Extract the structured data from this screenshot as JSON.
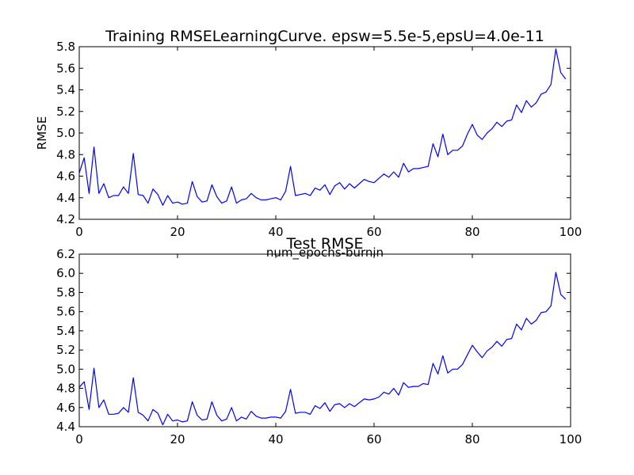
{
  "chart_data": [
    {
      "type": "line",
      "title": "Training RMSELearningCurve. epsw=5.5e-5,epsU=4.0e-11",
      "xlabel": "num_epochs-burnin",
      "ylabel": "RMSE",
      "xlim": [
        0,
        100
      ],
      "ylim": [
        4.2,
        5.8
      ],
      "xticks": [
        "0",
        "20",
        "40",
        "60",
        "80",
        "100"
      ],
      "yticks": [
        "4.2",
        "4.4",
        "4.6",
        "4.8",
        "5.0",
        "5.2",
        "5.4",
        "5.6",
        "5.8"
      ],
      "grid": false,
      "color": "#0000ff",
      "series": [
        {
          "x": [
            0,
            1,
            2,
            3,
            4,
            5,
            6,
            7,
            8,
            9,
            10,
            11,
            12,
            13,
            14,
            15,
            16,
            17,
            18,
            19,
            20,
            21,
            22,
            23,
            24,
            25,
            26,
            27,
            28,
            29,
            30,
            31,
            32,
            33,
            34,
            35,
            36,
            37,
            38,
            39,
            40,
            41,
            42,
            43,
            44,
            45,
            46,
            47,
            48,
            49,
            50,
            51,
            52,
            53,
            54,
            55,
            56,
            57,
            58,
            59,
            60,
            61,
            62,
            63,
            64,
            65,
            66,
            67,
            68,
            69,
            70,
            71,
            72,
            73,
            74,
            75,
            76,
            77,
            78,
            79,
            80,
            81,
            82,
            83,
            84,
            85,
            86,
            87,
            88,
            89,
            90,
            91,
            92,
            93,
            94,
            95,
            96,
            97,
            98,
            99
          ],
          "values": [
            4.63,
            4.77,
            4.44,
            4.87,
            4.44,
            4.53,
            4.4,
            4.42,
            4.42,
            4.5,
            4.44,
            4.81,
            4.43,
            4.42,
            4.35,
            4.48,
            4.43,
            4.33,
            4.42,
            4.35,
            4.36,
            4.34,
            4.35,
            4.55,
            4.41,
            4.36,
            4.37,
            4.52,
            4.41,
            4.35,
            4.37,
            4.5,
            4.35,
            4.38,
            4.39,
            4.44,
            4.4,
            4.38,
            4.38,
            4.39,
            4.4,
            4.38,
            4.46,
            4.69,
            4.42,
            4.43,
            4.44,
            4.42,
            4.49,
            4.47,
            4.52,
            4.43,
            4.51,
            4.54,
            4.48,
            4.53,
            4.49,
            4.53,
            4.57,
            4.55,
            4.54,
            4.58,
            4.62,
            4.59,
            4.64,
            4.59,
            4.72,
            4.64,
            4.67,
            4.67,
            4.68,
            4.69,
            4.9,
            4.78,
            4.99,
            4.8,
            4.84,
            4.84,
            4.88,
            4.99,
            5.08,
            4.98,
            4.94,
            5.0,
            5.04,
            5.1,
            5.06,
            5.11,
            5.12,
            5.26,
            5.19,
            5.3,
            5.24,
            5.28,
            5.36,
            5.38,
            5.45,
            5.78,
            5.56,
            5.5
          ]
        }
      ]
    },
    {
      "type": "line",
      "title": "Test RMSE",
      "xlabel": "",
      "ylabel": "",
      "xlim": [
        0,
        100
      ],
      "ylim": [
        4.4,
        6.2
      ],
      "xticks": [
        "0",
        "20",
        "40",
        "60",
        "80",
        "100"
      ],
      "yticks": [
        "4.4",
        "4.6",
        "4.8",
        "5.0",
        "5.2",
        "5.4",
        "5.6",
        "5.8",
        "6.0",
        "6.2"
      ],
      "grid": false,
      "color": "#0000ff",
      "series": [
        {
          "x": [
            0,
            1,
            2,
            3,
            4,
            5,
            6,
            7,
            8,
            9,
            10,
            11,
            12,
            13,
            14,
            15,
            16,
            17,
            18,
            19,
            20,
            21,
            22,
            23,
            24,
            25,
            26,
            27,
            28,
            29,
            30,
            31,
            32,
            33,
            34,
            35,
            36,
            37,
            38,
            39,
            40,
            41,
            42,
            43,
            44,
            45,
            46,
            47,
            48,
            49,
            50,
            51,
            52,
            53,
            54,
            55,
            56,
            57,
            58,
            59,
            60,
            61,
            62,
            63,
            64,
            65,
            66,
            67,
            68,
            69,
            70,
            71,
            72,
            73,
            74,
            75,
            76,
            77,
            78,
            79,
            80,
            81,
            82,
            83,
            84,
            85,
            86,
            87,
            88,
            89,
            90,
            91,
            92,
            93,
            94,
            95,
            96,
            97,
            98,
            99
          ],
          "values": [
            4.81,
            4.87,
            4.58,
            5.01,
            4.6,
            4.68,
            4.53,
            4.53,
            4.54,
            4.6,
            4.55,
            4.91,
            4.55,
            4.52,
            4.46,
            4.58,
            4.54,
            4.42,
            4.53,
            4.46,
            4.47,
            4.45,
            4.46,
            4.66,
            4.52,
            4.47,
            4.48,
            4.66,
            4.52,
            4.46,
            4.48,
            4.6,
            4.46,
            4.5,
            4.48,
            4.56,
            4.51,
            4.49,
            4.49,
            4.5,
            4.5,
            4.49,
            4.56,
            4.79,
            4.54,
            4.55,
            4.55,
            4.53,
            4.62,
            4.59,
            4.65,
            4.56,
            4.63,
            4.64,
            4.6,
            4.64,
            4.61,
            4.65,
            4.69,
            4.68,
            4.69,
            4.71,
            4.76,
            4.74,
            4.8,
            4.73,
            4.86,
            4.81,
            4.82,
            4.82,
            4.85,
            4.84,
            5.06,
            4.95,
            5.14,
            4.96,
            5.0,
            5.0,
            5.05,
            5.15,
            5.25,
            5.18,
            5.12,
            5.19,
            5.23,
            5.29,
            5.24,
            5.31,
            5.32,
            5.47,
            5.41,
            5.53,
            5.47,
            5.51,
            5.59,
            5.6,
            5.66,
            6.01,
            5.78,
            5.73
          ]
        }
      ]
    }
  ]
}
